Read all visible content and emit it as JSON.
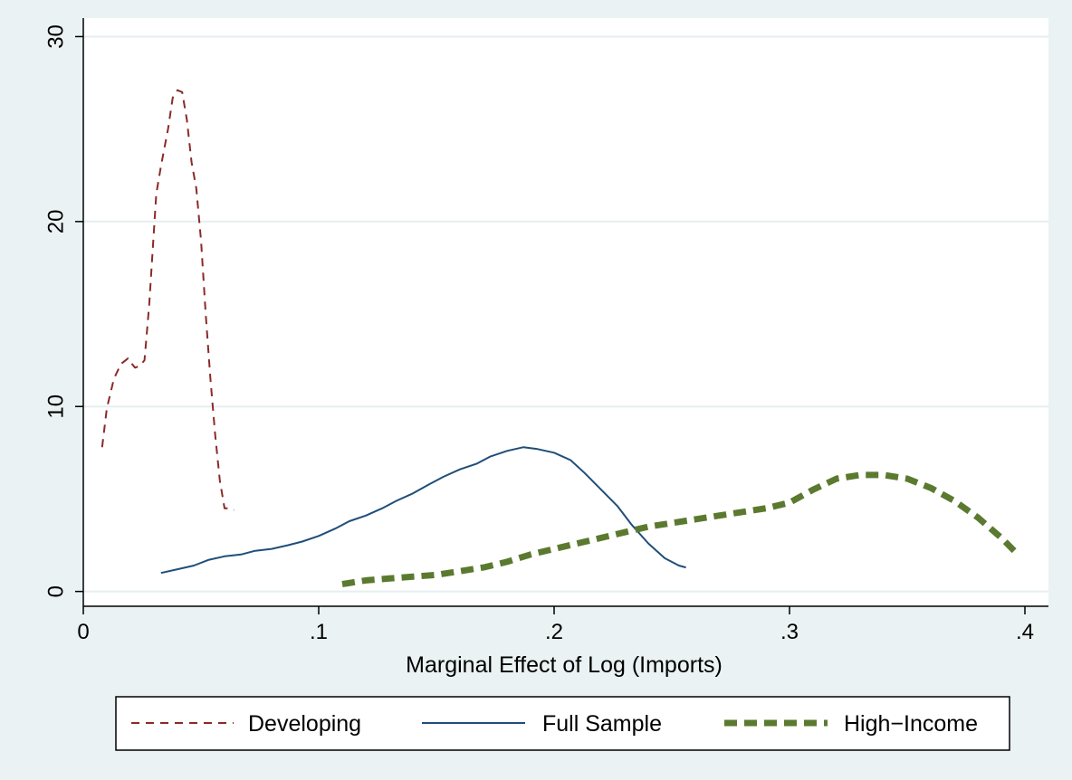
{
  "chart_data": {
    "type": "line",
    "title": "",
    "xlabel": "Marginal Effect of Log (Imports)",
    "ylabel": "",
    "xlim": [
      0,
      0.41
    ],
    "ylim": [
      -0.8,
      31
    ],
    "x_ticks": [
      {
        "value": 0,
        "label": "0"
      },
      {
        "value": 0.1,
        "label": ".1"
      },
      {
        "value": 0.2,
        "label": ".2"
      },
      {
        "value": 0.3,
        "label": ".3"
      },
      {
        "value": 0.4,
        "label": ".4"
      }
    ],
    "y_ticks": [
      {
        "value": 0,
        "label": "0"
      },
      {
        "value": 10,
        "label": "10"
      },
      {
        "value": 20,
        "label": "20"
      },
      {
        "value": 30,
        "label": "30"
      }
    ],
    "grid": true,
    "legend_position": "bottom",
    "series": [
      {
        "name": "Developing",
        "color": "#8b2a2a",
        "dash": "dashed",
        "x": [
          0.008,
          0.01,
          0.013,
          0.016,
          0.019,
          0.02,
          0.022,
          0.024,
          0.026,
          0.028,
          0.031,
          0.033,
          0.036,
          0.038,
          0.04,
          0.042,
          0.044,
          0.046,
          0.048,
          0.05,
          0.052,
          0.054,
          0.056,
          0.058,
          0.06,
          0.062,
          0.064
        ],
        "y": [
          7.8,
          9.9,
          11.5,
          12.3,
          12.6,
          12.4,
          12.1,
          12.2,
          12.5,
          15.5,
          21.5,
          23.0,
          25.0,
          26.7,
          27.1,
          27.0,
          25.5,
          23.2,
          21.8,
          19.0,
          15.0,
          11.5,
          8.5,
          6.0,
          4.5,
          4.5,
          4.4
        ]
      },
      {
        "name": "Full Sample",
        "color": "#1f4e79",
        "dash": "solid",
        "x": [
          0.033,
          0.04,
          0.047,
          0.053,
          0.06,
          0.067,
          0.073,
          0.08,
          0.087,
          0.093,
          0.1,
          0.107,
          0.113,
          0.12,
          0.127,
          0.133,
          0.14,
          0.147,
          0.153,
          0.16,
          0.167,
          0.173,
          0.18,
          0.187,
          0.193,
          0.2,
          0.207,
          0.213,
          0.22,
          0.227,
          0.233,
          0.24,
          0.247,
          0.253,
          0.256
        ],
        "y": [
          1.0,
          1.2,
          1.4,
          1.7,
          1.9,
          2.0,
          2.2,
          2.3,
          2.5,
          2.7,
          3.0,
          3.4,
          3.8,
          4.1,
          4.5,
          4.9,
          5.3,
          5.8,
          6.2,
          6.6,
          6.9,
          7.3,
          7.6,
          7.8,
          7.7,
          7.5,
          7.1,
          6.4,
          5.5,
          4.6,
          3.6,
          2.6,
          1.8,
          1.4,
          1.3
        ]
      },
      {
        "name": "High−Income",
        "color": "#5b7a30",
        "dash": "thick-dashed",
        "x": [
          0.11,
          0.12,
          0.13,
          0.14,
          0.15,
          0.16,
          0.17,
          0.18,
          0.19,
          0.2,
          0.21,
          0.22,
          0.23,
          0.24,
          0.25,
          0.26,
          0.27,
          0.28,
          0.29,
          0.3,
          0.31,
          0.32,
          0.33,
          0.34,
          0.35,
          0.36,
          0.37,
          0.38,
          0.39,
          0.397
        ],
        "y": [
          0.4,
          0.6,
          0.7,
          0.8,
          0.9,
          1.1,
          1.3,
          1.6,
          2.0,
          2.3,
          2.6,
          2.9,
          3.2,
          3.5,
          3.7,
          3.9,
          4.1,
          4.3,
          4.5,
          4.8,
          5.5,
          6.1,
          6.3,
          6.3,
          6.1,
          5.6,
          4.9,
          4.0,
          2.9,
          2.0
        ]
      }
    ]
  }
}
